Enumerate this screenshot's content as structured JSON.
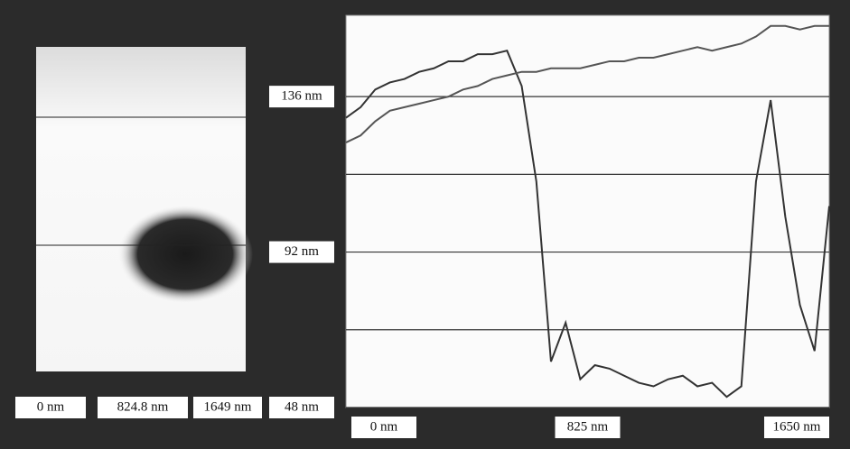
{
  "image_panel": {
    "xtick_labels": [
      "0 nm",
      "824.8 nm",
      "1649 nm"
    ]
  },
  "chart_data": {
    "type": "line",
    "x": [
      0,
      50,
      100,
      150,
      200,
      250,
      300,
      350,
      400,
      450,
      500,
      550,
      600,
      650,
      700,
      750,
      800,
      850,
      900,
      950,
      1000,
      1050,
      1100,
      1150,
      1200,
      1250,
      1300,
      1350,
      1400,
      1450,
      1500,
      1550,
      1600,
      1650
    ],
    "series": [
      {
        "color": "#333333",
        "values": [
          130,
          133,
          138,
          140,
          141,
          143,
          144,
          146,
          146,
          148,
          148,
          149,
          139,
          112,
          61,
          72,
          56,
          60,
          59,
          57,
          55,
          54,
          56,
          57,
          54,
          55,
          51,
          54,
          112,
          135,
          102,
          77,
          64,
          105
        ]
      },
      {
        "color": "#555555",
        "values": [
          123,
          125,
          129,
          132,
          133,
          134,
          135,
          136,
          138,
          139,
          141,
          142,
          143,
          143,
          144,
          144,
          144,
          145,
          146,
          146,
          147,
          147,
          148,
          149,
          150,
          149,
          150,
          151,
          153,
          156,
          156,
          155,
          156,
          156
        ]
      }
    ],
    "xlim": [
      0,
      1650
    ],
    "xticks": [
      {
        "value": 0,
        "label": "0 nm"
      },
      {
        "value": 825,
        "label": "825 nm"
      },
      {
        "value": 1650,
        "label": "1650 nm"
      }
    ],
    "ylim": [
      48,
      159
    ],
    "yticks": [
      {
        "value": 48,
        "label": "48 nm"
      },
      {
        "value": 70,
        "label": null
      },
      {
        "value": 92,
        "label": "92 nm"
      },
      {
        "value": 114,
        "label": null
      },
      {
        "value": 136,
        "label": "136 nm"
      }
    ],
    "grid": true
  }
}
